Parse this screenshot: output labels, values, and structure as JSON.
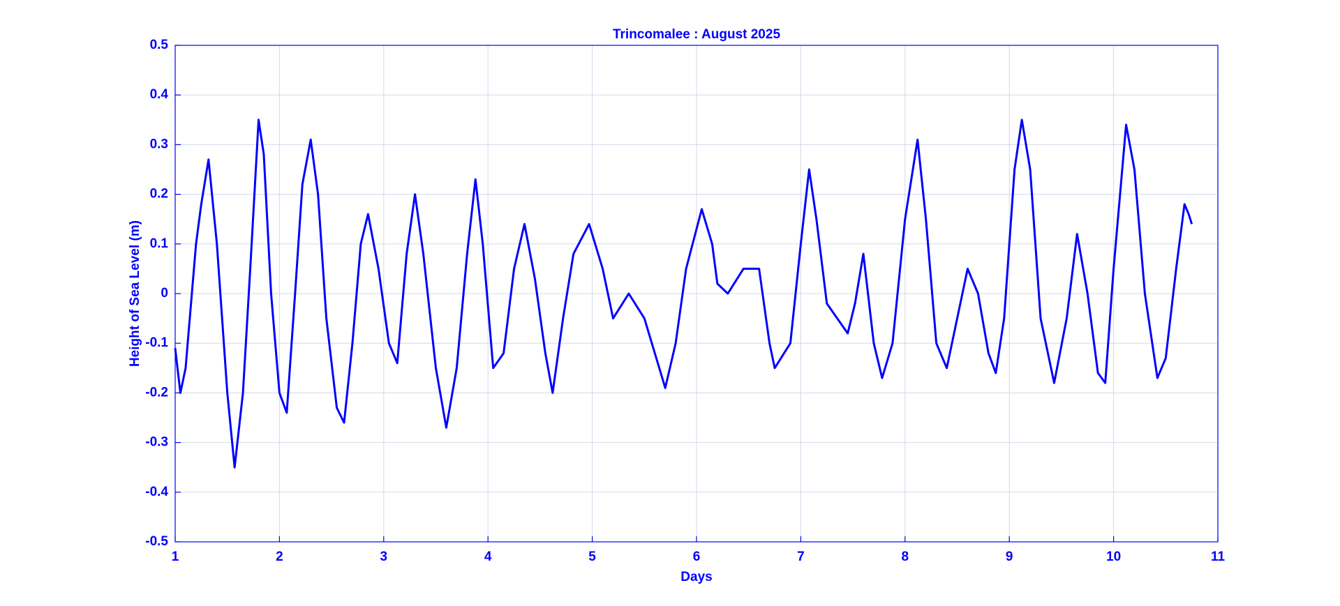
{
  "chart_data": {
    "type": "line",
    "title": "Trincomalee : August 2025",
    "x_label": "Days",
    "y_label": "Height of Sea Level (m)",
    "xlim": [
      1,
      11
    ],
    "ylim": [
      -0.5,
      0.5
    ],
    "xticks": [
      1,
      2,
      3,
      4,
      5,
      6,
      7,
      8,
      9,
      10,
      11
    ],
    "yticks": [
      -0.5,
      -0.4,
      -0.3,
      -0.2,
      -0.1,
      0,
      0.1,
      0.2,
      0.3,
      0.4,
      0.5
    ],
    "grid": true,
    "series": [
      {
        "color": "#0000ff",
        "x": [
          1.0,
          1.05,
          1.1,
          1.2,
          1.25,
          1.32,
          1.4,
          1.5,
          1.57,
          1.65,
          1.72,
          1.8,
          1.85,
          1.92,
          2.0,
          2.07,
          2.15,
          2.22,
          2.3,
          2.37,
          2.45,
          2.55,
          2.62,
          2.7,
          2.78,
          2.85,
          2.95,
          3.05,
          3.13,
          3.22,
          3.3,
          3.38,
          3.5,
          3.6,
          3.7,
          3.8,
          3.88,
          3.95,
          4.05,
          4.15,
          4.25,
          4.35,
          4.45,
          4.55,
          4.62,
          4.72,
          4.82,
          4.97,
          5.1,
          5.2,
          5.35,
          5.5,
          5.6,
          5.7,
          5.8,
          5.9,
          6.05,
          6.15,
          6.2,
          6.3,
          6.45,
          6.6,
          6.7,
          6.75,
          6.9,
          7.0,
          7.08,
          7.15,
          7.25,
          7.35,
          7.45,
          7.52,
          7.6,
          7.7,
          7.78,
          7.88,
          8.0,
          8.12,
          8.2,
          8.3,
          8.4,
          8.5,
          8.6,
          8.7,
          8.8,
          8.87,
          8.95,
          9.05,
          9.12,
          9.2,
          9.3,
          9.43,
          9.55,
          9.65,
          9.75,
          9.85,
          9.92,
          10.0,
          10.12,
          10.2,
          10.3,
          10.42,
          10.5,
          10.6,
          10.68,
          10.72,
          10.75
        ],
        "values": [
          -0.11,
          -0.2,
          -0.15,
          0.1,
          0.18,
          0.27,
          0.1,
          -0.2,
          -0.35,
          -0.2,
          0.05,
          0.35,
          0.28,
          0.0,
          -0.2,
          -0.24,
          0.0,
          0.22,
          0.31,
          0.2,
          -0.05,
          -0.23,
          -0.26,
          -0.1,
          0.1,
          0.16,
          0.05,
          -0.1,
          -0.14,
          0.08,
          0.2,
          0.08,
          -0.15,
          -0.27,
          -0.15,
          0.08,
          0.23,
          0.1,
          -0.15,
          -0.12,
          0.05,
          0.14,
          0.03,
          -0.12,
          -0.2,
          -0.05,
          0.08,
          0.14,
          0.05,
          -0.05,
          0.0,
          -0.05,
          -0.12,
          -0.19,
          -0.1,
          0.05,
          0.17,
          0.1,
          0.02,
          0.0,
          0.05,
          0.05,
          -0.1,
          -0.15,
          -0.1,
          0.1,
          0.25,
          0.15,
          -0.02,
          -0.05,
          -0.08,
          -0.02,
          0.08,
          -0.1,
          -0.17,
          -0.1,
          0.15,
          0.31,
          0.15,
          -0.1,
          -0.15,
          -0.05,
          0.05,
          0.0,
          -0.12,
          -0.16,
          -0.05,
          0.25,
          0.35,
          0.25,
          -0.05,
          -0.18,
          -0.05,
          0.12,
          0.0,
          -0.16,
          -0.18,
          0.05,
          0.34,
          0.25,
          0.0,
          -0.17,
          -0.13,
          0.05,
          0.18,
          0.16,
          0.14
        ]
      }
    ]
  }
}
